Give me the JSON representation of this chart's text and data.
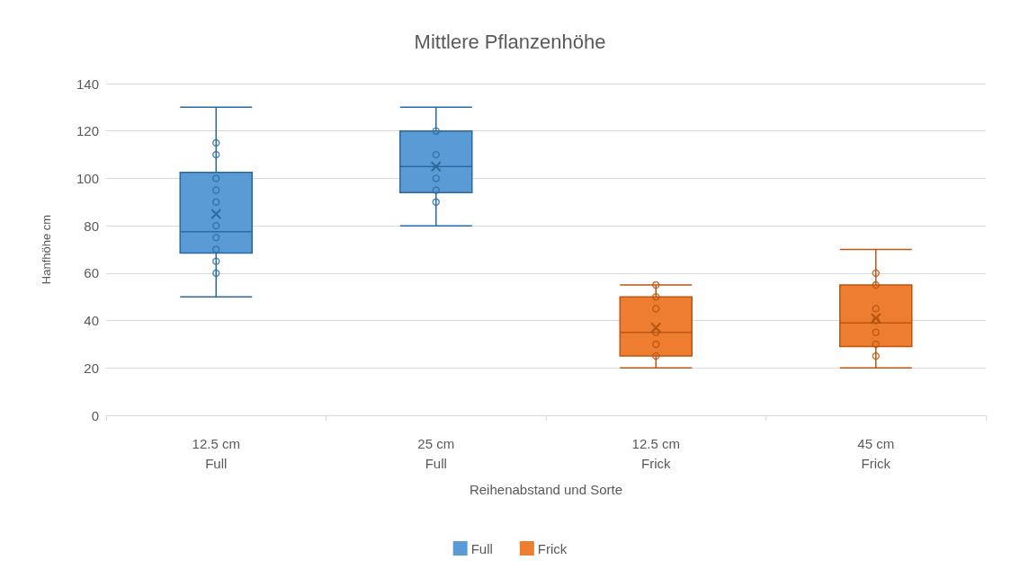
{
  "chart_data": {
    "type": "box",
    "title": "Mittlere Pflanzenhöhe",
    "xlabel": "Reihenabstand und Sorte",
    "ylabel": "Hanfhöhe cm",
    "categories": [
      "12.5 cm\nFull",
      "25 cm\nFull",
      "12.5 cm\nFrick",
      "45 cm\nFrick"
    ],
    "series": [
      {
        "name": "Full",
        "color": "#5b9bd5",
        "boxes": [
          {
            "low": 50,
            "q1": 68.5,
            "median": 77.5,
            "q3": 102.5,
            "high": 130,
            "mean": 85
          },
          {
            "low": 80,
            "q1": 94,
            "median": 105,
            "q3": 120,
            "high": 130,
            "mean": 105
          },
          null,
          null
        ]
      },
      {
        "name": "Frick",
        "color": "#ed7d31",
        "boxes": [
          null,
          null,
          {
            "low": 20,
            "q1": 25,
            "median": 35,
            "q3": 50,
            "high": 55,
            "mean": 37
          },
          {
            "low": 20,
            "q1": 29,
            "median": 39,
            "q3": 55,
            "high": 70,
            "mean": 41
          }
        ]
      },
      {
        "type": "scatter",
        "color": "#2e6da4",
        "x": [
          "12.5 cm\nFull",
          "12.5 cm\nFull",
          "12.5 cm\nFull",
          "12.5 cm\nFull",
          "12.5 cm\nFull",
          "12.5 cm\nFull",
          "12.5 cm\nFull",
          "12.5 cm\nFull",
          "12.5 cm\nFull",
          "12.5 cm\nFull",
          "25 cm\nFull",
          "25 cm\nFull",
          "25 cm\nFull",
          "25 cm\nFull",
          "25 cm\nFull"
        ],
        "values": [
          115,
          110,
          100,
          95,
          90,
          80,
          75,
          70,
          65,
          60,
          120,
          110,
          100,
          95,
          90
        ]
      },
      {
        "type": "scatter",
        "color": "#b8520e",
        "x": [
          "12.5 cm\nFrick",
          "12.5 cm\nFrick",
          "12.5 cm\nFrick",
          "12.5 cm\nFrick",
          "12.5 cm\nFrick",
          "12.5 cm\nFrick",
          "45 cm\nFrick",
          "45 cm\nFrick",
          "45 cm\nFrick",
          "45 cm\nFrick",
          "45 cm\nFrick",
          "45 cm\nFrick",
          "45 cm\nFrick"
        ],
        "values": [
          55,
          50,
          45,
          35,
          30,
          25,
          60,
          55,
          45,
          40,
          35,
          30,
          25
        ]
      }
    ],
    "ylim": [
      0,
      140
    ],
    "yticks": [
      0,
      20,
      40,
      60,
      80,
      100,
      120,
      140
    ],
    "grid": "y",
    "legend": "bottom"
  }
}
